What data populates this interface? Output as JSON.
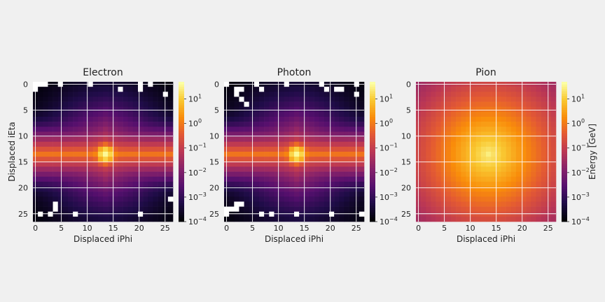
{
  "figure": {
    "background": "#f0f0f0",
    "colormap": "inferno",
    "gridColor": "#ffffff"
  },
  "chart_data": [
    {
      "type": "heatmap",
      "title": "Electron",
      "xlabel": "Displaced iPhi",
      "ylabel": "Displaced iEta",
      "xlim": [
        0,
        27
      ],
      "ylim": [
        27,
        0
      ],
      "xticks": [
        0,
        5,
        10,
        15,
        20,
        25
      ],
      "yticks": [
        0,
        5,
        10,
        15,
        20,
        25
      ],
      "grid": true,
      "grid_size": 28,
      "peak": [
        14,
        14
      ],
      "colorbar": {
        "scale": "log",
        "range": [
          0.0001,
          50
        ],
        "ticks": [
          "10^-4",
          "10^-3",
          "10^-2",
          "10^-1",
          "10^0",
          "10^1"
        ],
        "label": ""
      },
      "profile": "electromagnetic-horizontal-band",
      "empty_cells": [
        [
          0,
          0
        ],
        [
          0,
          1
        ],
        [
          0,
          2
        ],
        [
          0,
          5
        ],
        [
          0,
          11
        ],
        [
          0,
          21
        ],
        [
          0,
          23
        ],
        [
          1,
          0
        ],
        [
          1,
          17
        ],
        [
          1,
          21
        ],
        [
          2,
          26
        ],
        [
          24,
          4
        ],
        [
          25,
          4
        ],
        [
          26,
          1
        ],
        [
          26,
          3
        ],
        [
          26,
          8
        ],
        [
          26,
          21
        ],
        [
          23,
          27
        ]
      ]
    },
    {
      "type": "heatmap",
      "title": "Photon",
      "xlabel": "Displaced iPhi",
      "ylabel": "",
      "xlim": [
        0,
        27
      ],
      "ylim": [
        27,
        0
      ],
      "xticks": [
        0,
        5,
        10,
        15,
        20,
        25
      ],
      "yticks": [
        0,
        5,
        10,
        15,
        20,
        25
      ],
      "grid": true,
      "grid_size": 28,
      "peak": [
        14,
        14
      ],
      "colorbar": {
        "scale": "log",
        "range": [
          0.0001,
          50
        ],
        "ticks": [
          "10^-4",
          "10^-3",
          "10^-2",
          "10^-1",
          "10^0",
          "10^1"
        ],
        "label": ""
      },
      "profile": "electromagnetic-horizontal-band",
      "empty_cells": [
        [
          0,
          0
        ],
        [
          0,
          6
        ],
        [
          0,
          12
        ],
        [
          0,
          19
        ],
        [
          0,
          26
        ],
        [
          1,
          2
        ],
        [
          1,
          3
        ],
        [
          1,
          7
        ],
        [
          1,
          20
        ],
        [
          1,
          22
        ],
        [
          1,
          23
        ],
        [
          2,
          2
        ],
        [
          2,
          26
        ],
        [
          3,
          3
        ],
        [
          4,
          4
        ],
        [
          24,
          2
        ],
        [
          24,
          3
        ],
        [
          25,
          0
        ],
        [
          25,
          1
        ],
        [
          25,
          2
        ],
        [
          26,
          0
        ],
        [
          26,
          7
        ],
        [
          26,
          9
        ],
        [
          26,
          14
        ],
        [
          26,
          21
        ],
        [
          26,
          27
        ]
      ]
    },
    {
      "type": "heatmap",
      "title": "Pion",
      "xlabel": "Displaced iPhi",
      "ylabel": "",
      "xlim": [
        0,
        27
      ],
      "ylim": [
        27,
        0
      ],
      "xticks": [
        0,
        5,
        10,
        15,
        20,
        25
      ],
      "yticks": [
        0,
        5,
        10,
        15,
        20,
        25
      ],
      "grid": true,
      "grid_size": 28,
      "peak": [
        14,
        14
      ],
      "colorbar": {
        "scale": "log",
        "range": [
          0.0001,
          50
        ],
        "ticks": [
          "10^-4",
          "10^-3",
          "10^-2",
          "10^-1",
          "10^0",
          "10^1"
        ],
        "label": "Energy [GeV]"
      },
      "profile": "hadronic-broad",
      "empty_cells": []
    }
  ]
}
